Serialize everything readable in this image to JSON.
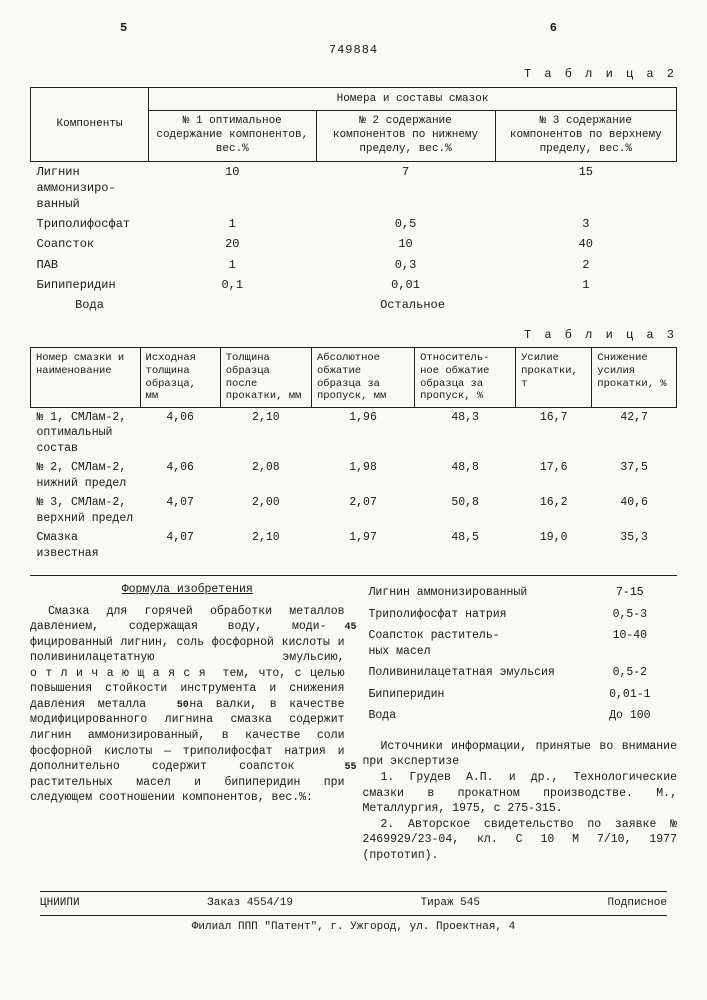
{
  "header": {
    "left_col_num": "5",
    "right_col_num": "6",
    "doc_number": "749884"
  },
  "table2": {
    "caption": "Т а б л и ц а  2",
    "super_header": "Номера и составы смазок",
    "col_components": "Компоненты",
    "col1": "№ 1 оптимальное содержание компонентов, вес.%",
    "col2": "№ 2 содержание компонентов по нижнему пределу, вес.%",
    "col3": "№ 3 содержание компонентов по верхнему пределу, вес.%",
    "rows": [
      {
        "name": "Лигнин аммонизиро-\nванный",
        "v1": "10",
        "v2": "7",
        "v3": "15"
      },
      {
        "name": "Триполифосфат",
        "v1": "1",
        "v2": "0,5",
        "v3": "3"
      },
      {
        "name": "Соапсток",
        "v1": "20",
        "v2": "10",
        "v3": "40"
      },
      {
        "name": "ПАВ",
        "v1": "1",
        "v2": "0,3",
        "v3": "2"
      },
      {
        "name": "Бипиперидин",
        "v1": "0,1",
        "v2": "0,01",
        "v3": "1"
      }
    ],
    "water_row": {
      "name": "Вода",
      "value": "Остальное"
    }
  },
  "table3": {
    "caption": "Т а б л и ц а  3",
    "headers": [
      "Номер смазки и наименование",
      "Исходная толщина образца, мм",
      "Толщина образца после прокатки, мм",
      "Абсолютное обжатие образца за пропуск, мм",
      "Относитель-\nное обжатие образца за пропуск, %",
      "Усилие прокатки, т",
      "Снижение усилия прокатки, %"
    ],
    "rows": [
      {
        "label": "№ 1, СМЛам-2, оптимальный состав",
        "v": [
          "4,06",
          "2,10",
          "1,96",
          "48,3",
          "16,7",
          "42,7"
        ]
      },
      {
        "label": "№ 2, СМЛам-2, нижний предел",
        "v": [
          "4,06",
          "2,08",
          "1,98",
          "48,8",
          "17,6",
          "37,5"
        ]
      },
      {
        "label": "№ 3, СМЛам-2, верхний предел",
        "v": [
          "4,07",
          "2,00",
          "2,07",
          "50,8",
          "16,2",
          "40,6"
        ]
      },
      {
        "label": "Смазка известная",
        "v": [
          "4,07",
          "2,10",
          "1,97",
          "48,5",
          "19,0",
          "35,3"
        ]
      }
    ]
  },
  "formula": {
    "heading": "Формула изобретения",
    "body": "Смазка для горячей обработки метал­лов давлением, содержащая воду, моди­фицированный лигнин, соль фосфорной кислоты и поливинилацетатную эмуль­сию, о т л и ч а ю щ а я с я  тем, что, с целью повышения стойкости инст­румента и снижения давления металла на валки, в качестве модифицирован­ного лигнина смазка содержит лигнин аммонизированный, в качестве соли фосфорной кислоты — триполифосфат нат­рия и дополнительно содержит соапсток растительных масел и бипиперидин при следующем соотношении компонентов, вес.%:"
  },
  "linemarks": {
    "m45": "45",
    "m50": "50",
    "m55": "55"
  },
  "composition": {
    "rows": [
      {
        "name": "Лигнин аммонизированный",
        "range": "7-15"
      },
      {
        "name": "Триполифосфат натрия",
        "range": "0,5-3"
      },
      {
        "name": "Соапсток раститель-\nных масел",
        "range": "10-40"
      },
      {
        "name": "Поливинилацетатная эмульсия",
        "range": "0,5-2"
      },
      {
        "name": "Бипиперидин",
        "range": "0,01-1"
      },
      {
        "name": "Вода",
        "range": "До 100"
      }
    ]
  },
  "sources": {
    "heading": "Источники информации, принятые во внимание при экспертизе",
    "s1": "1. Грудев А.П. и др., Технологи­ческие смазки в прокатном производ­стве. М., Металлургия, 1975, с 275-315.",
    "s2": "2. Авторское свидетельство по за­явке № 2469929/23-04, кл. С 10 М 7/10, 1977 (прототип)."
  },
  "footer": {
    "org": "ЦНИИПИ",
    "order": "Заказ 4554/19",
    "tirazh": "Тираж 545",
    "sign": "Подписное",
    "addr": "Филиал ППП \"Патент\", г. Ужгород, ул. Проектная, 4"
  }
}
